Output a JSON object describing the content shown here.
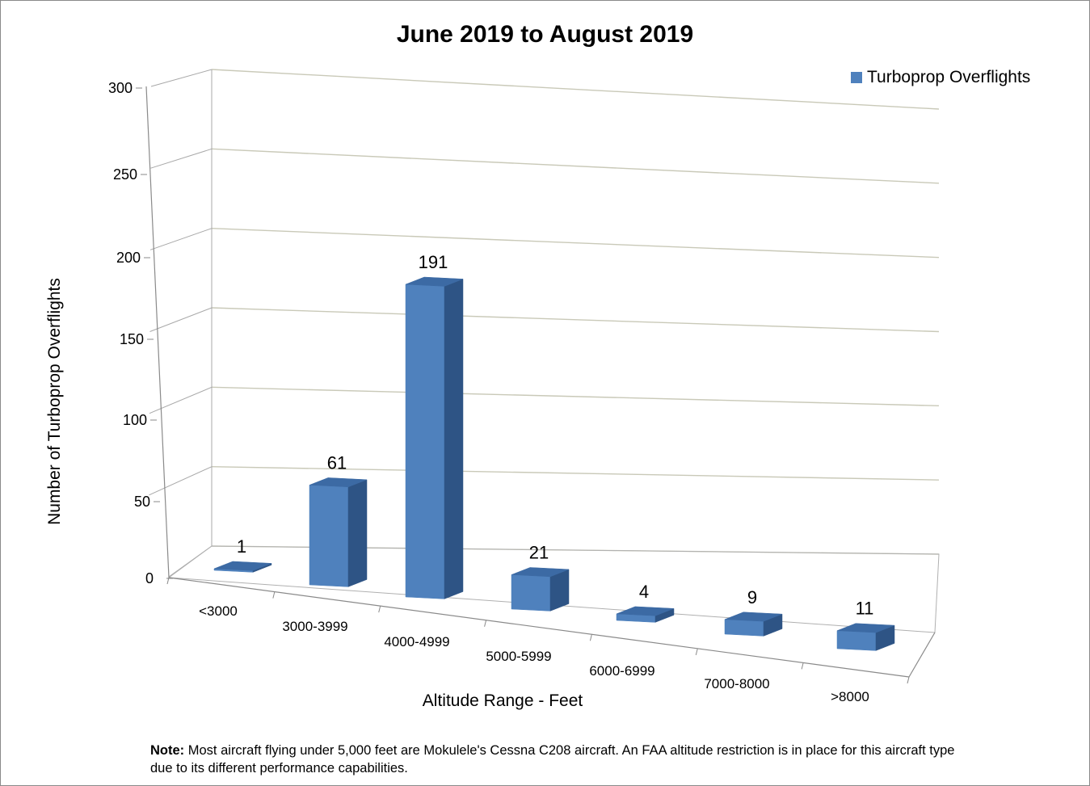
{
  "chart_data": {
    "type": "bar",
    "title": "June 2019 to August 2019",
    "xlabel": "Altitude Range  - Feet",
    "ylabel": "Number of Turboprop Overflights",
    "categories": [
      "<3000",
      "3000-3999",
      "4000-4999",
      "5000-5999",
      "6000-6999",
      "7000-8000",
      ">8000"
    ],
    "series": [
      {
        "name": "Turboprop Overflights",
        "values": [
          1,
          61,
          191,
          21,
          4,
          9,
          11
        ]
      }
    ],
    "ylim": [
      0,
      300
    ],
    "yticks": [
      "0",
      "50",
      "100",
      "150",
      "200",
      "250",
      "300"
    ],
    "grid": true,
    "legend_position": "top-right",
    "bar_color": "#4f81bd",
    "bar_side_color": "#2e5485",
    "bar_top_color": "#3c6aa4"
  },
  "note": {
    "label": "Note:",
    "text": " Most aircraft flying under 5,000 feet are Mokulele's Cessna C208  aircraft. An FAA altitude restriction is in place for this aircraft type due to its different performance capabilities."
  }
}
